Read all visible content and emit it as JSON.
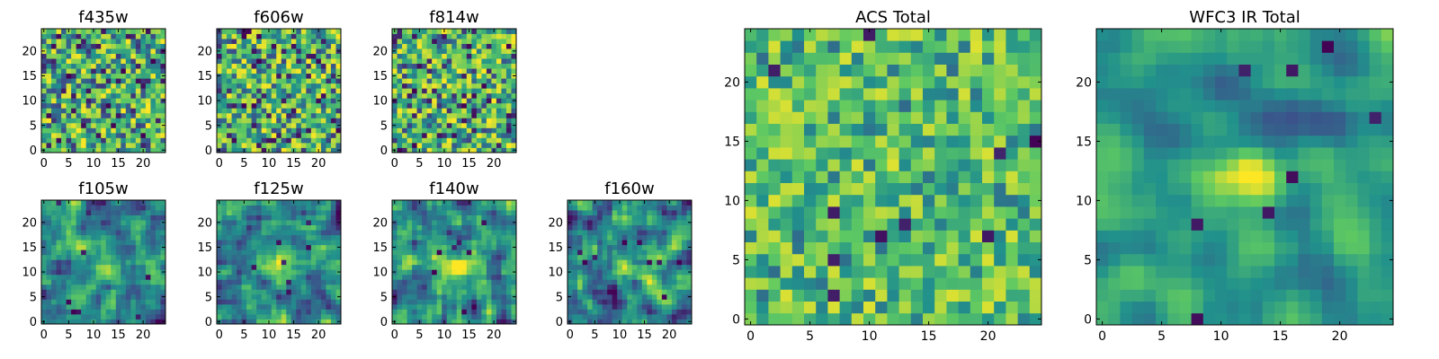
{
  "chart_data": [
    {
      "type": "heatmap",
      "title": "f435w",
      "seed": 11,
      "style": "noise",
      "x_ticks": [
        0,
        5,
        10,
        15,
        20
      ],
      "y_ticks": [
        0,
        5,
        10,
        15,
        20
      ],
      "xlim": [
        0,
        25
      ],
      "ylim": [
        0,
        25
      ],
      "grid": false
    },
    {
      "type": "heatmap",
      "title": "f606w",
      "seed": 23,
      "style": "noise",
      "x_ticks": [
        0,
        5,
        10,
        15,
        20
      ],
      "y_ticks": [
        0,
        5,
        10,
        15,
        20
      ],
      "xlim": [
        0,
        25
      ],
      "ylim": [
        0,
        25
      ],
      "grid": false
    },
    {
      "type": "heatmap",
      "title": "f814w",
      "seed": 37,
      "style": "noise",
      "x_ticks": [
        0,
        5,
        10,
        15,
        20
      ],
      "y_ticks": [
        0,
        5,
        10,
        15,
        20
      ],
      "xlim": [
        0,
        25
      ],
      "ylim": [
        0,
        25
      ],
      "grid": false
    },
    {
      "type": "heatmap",
      "title": "f105w",
      "seed": 41,
      "style": "smooth",
      "x_ticks": [
        0,
        5,
        10,
        15,
        20
      ],
      "y_ticks": [
        0,
        5,
        10,
        15,
        20
      ],
      "xlim": [
        0,
        25
      ],
      "ylim": [
        0,
        25
      ],
      "grid": false
    },
    {
      "type": "heatmap",
      "title": "f125w",
      "seed": 53,
      "style": "smooth",
      "x_ticks": [
        0,
        5,
        10,
        15,
        20
      ],
      "y_ticks": [
        0,
        5,
        10,
        15,
        20
      ],
      "xlim": [
        0,
        25
      ],
      "ylim": [
        0,
        25
      ],
      "grid": false
    },
    {
      "type": "heatmap",
      "title": "f140w",
      "seed": 67,
      "style": "smooth",
      "x_ticks": [
        0,
        5,
        10,
        15,
        20
      ],
      "y_ticks": [
        0,
        5,
        10,
        15,
        20
      ],
      "xlim": [
        0,
        25
      ],
      "ylim": [
        0,
        25
      ],
      "grid": false
    },
    {
      "type": "heatmap",
      "title": "f160w",
      "seed": 79,
      "style": "smooth",
      "x_ticks": [
        0,
        5,
        10,
        15,
        20
      ],
      "y_ticks": [
        0,
        5,
        10,
        15,
        20
      ],
      "xlim": [
        0,
        25
      ],
      "ylim": [
        0,
        25
      ],
      "grid": false
    },
    {
      "type": "heatmap",
      "title": "ACS Total",
      "seed": 83,
      "style": "blocky",
      "x_ticks": [
        0,
        5,
        10,
        15,
        20
      ],
      "y_ticks": [
        0,
        5,
        10,
        15,
        20
      ],
      "xlim": [
        0,
        25
      ],
      "ylim": [
        0,
        25
      ],
      "grid": false
    },
    {
      "type": "heatmap",
      "title": "WFC3 IR Total",
      "seed": 97,
      "style": "blob",
      "x_ticks": [
        0,
        5,
        10,
        15,
        20
      ],
      "y_ticks": [
        0,
        5,
        10,
        15,
        20
      ],
      "xlim": [
        0,
        25
      ],
      "ylim": [
        0,
        25
      ],
      "grid": false
    }
  ],
  "colormap": [
    "#440154",
    "#3b528b",
    "#21918c",
    "#5ec962",
    "#fde725"
  ]
}
